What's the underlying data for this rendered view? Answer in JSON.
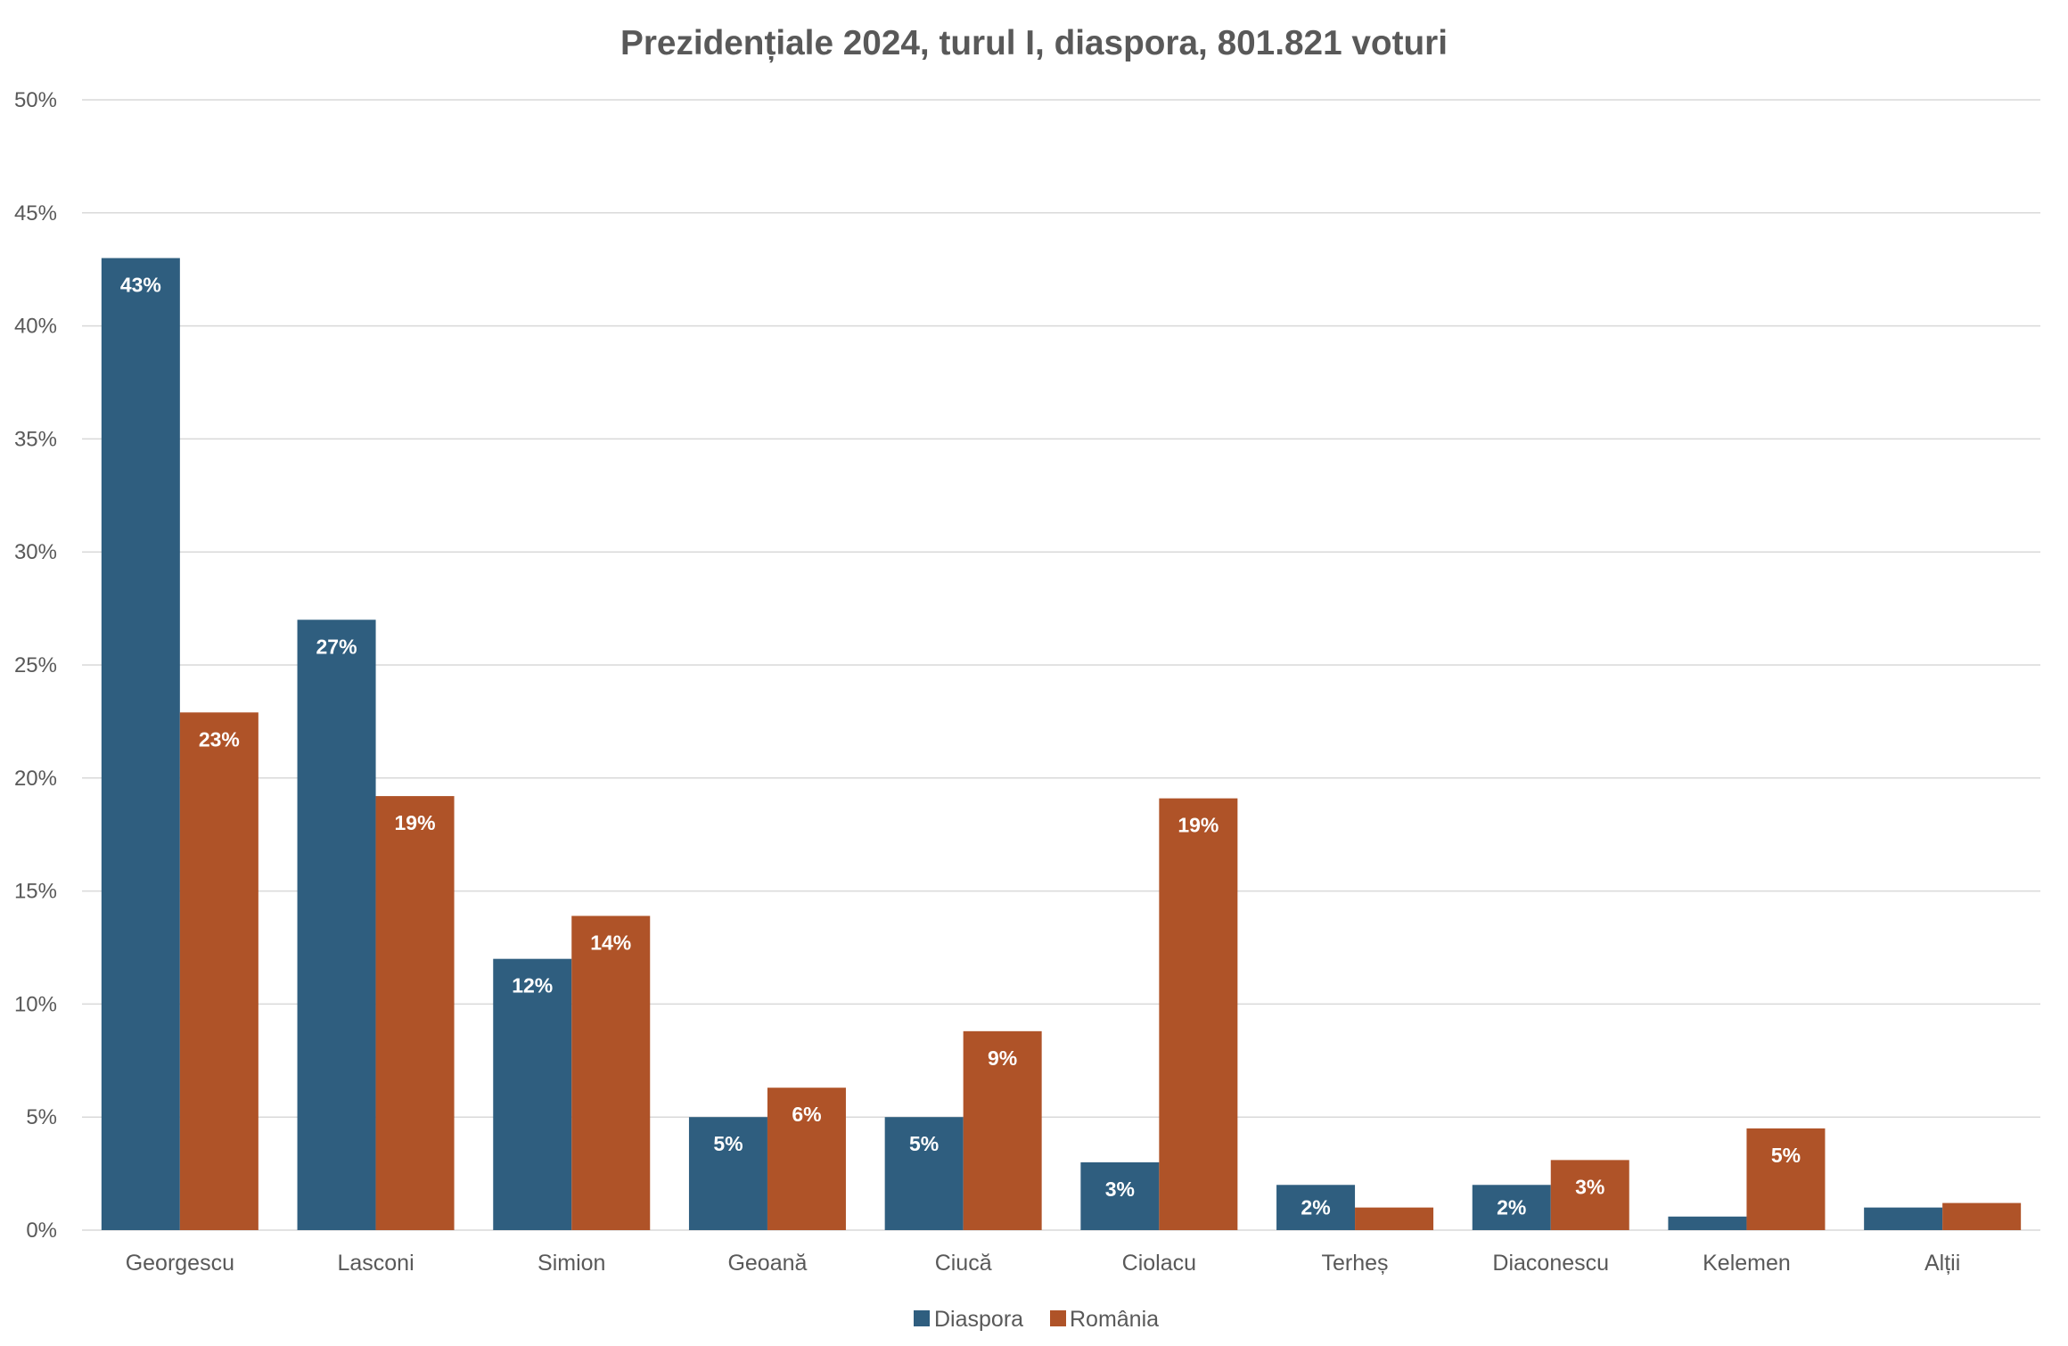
{
  "chart_data": {
    "type": "bar",
    "title": "Prezidențiale 2024, turul I, diaspora, 801.821 voturi",
    "categories": [
      "Georgescu",
      "Lasconi",
      "Simion",
      "Geoană",
      "Ciucă",
      "Ciolacu",
      "Terheș",
      "Diaconescu",
      "Kelemen",
      "Alții"
    ],
    "series": [
      {
        "name": "Diaspora",
        "color": "#2F5E7F",
        "values": [
          43,
          27,
          12,
          5,
          5,
          3,
          2,
          2,
          0.6,
          1
        ],
        "labels": [
          "43%",
          "27%",
          "12%",
          "5%",
          "5%",
          "3%",
          "2%",
          "2%",
          "",
          ""
        ]
      },
      {
        "name": "România",
        "color": "#AF5328",
        "values": [
          22.9,
          19.2,
          13.9,
          6.3,
          8.8,
          19.1,
          1.0,
          3.1,
          4.5,
          1.2
        ],
        "labels": [
          "23%",
          "19%",
          "14%",
          "6%",
          "9%",
          "19%",
          "",
          "3%",
          "5%",
          ""
        ]
      }
    ],
    "ylim": [
      0,
      50
    ],
    "yticks": [
      0,
      5,
      10,
      15,
      20,
      25,
      30,
      35,
      40,
      45,
      50
    ],
    "ytick_labels": [
      "0%",
      "5%",
      "10%",
      "15%",
      "20%",
      "25%",
      "30%",
      "35%",
      "40%",
      "45%",
      "50%"
    ],
    "grid": true,
    "legend_position": "bottom"
  }
}
